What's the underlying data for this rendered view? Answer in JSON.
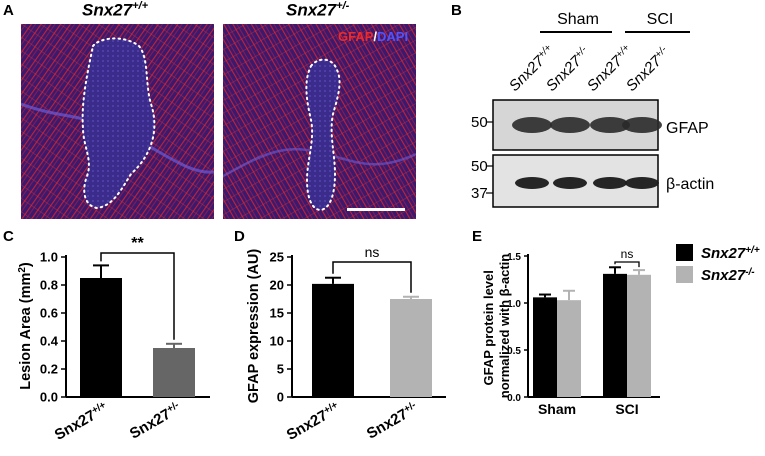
{
  "panels": {
    "A": "A",
    "B": "B",
    "C": "C",
    "D": "D",
    "E": "E"
  },
  "panel_a": {
    "images": [
      {
        "genotype_base": "Snx27",
        "genotype_sup": "+/+"
      },
      {
        "genotype_base": "Snx27",
        "genotype_sup": "+/-"
      }
    ],
    "stain_gfap": "GFAP",
    "stain_sep": "/",
    "stain_dapi": "DAPI",
    "colors": {
      "gfap": "#d8202a",
      "dapi": "#3b3cc8",
      "background": "#2a1760"
    }
  },
  "panel_b": {
    "groups": [
      {
        "label": "Sham"
      },
      {
        "label": "SCI"
      }
    ],
    "lanes": [
      {
        "base": "Snx27",
        "sup": "+/+"
      },
      {
        "base": "Snx27",
        "sup": "+/-"
      },
      {
        "base": "Snx27",
        "sup": "+/+"
      },
      {
        "base": "Snx27",
        "sup": "+/-"
      }
    ],
    "blots": [
      {
        "protein": "GFAP",
        "markers": [
          "50"
        ]
      },
      {
        "protein": "β-actin",
        "markers": [
          "50",
          "37"
        ]
      }
    ]
  },
  "chart_data": [
    {
      "panel": "C",
      "type": "bar",
      "categories": [
        {
          "base": "Snx27",
          "sup": "+/+"
        },
        {
          "base": "Snx27",
          "sup": "+/-"
        }
      ],
      "values": [
        0.85,
        0.35
      ],
      "errors": [
        0.09,
        0.03
      ],
      "colors": [
        "#000000",
        "#666666"
      ],
      "ylabel": "Lesion Area (mm",
      "ylabel_sup": "2",
      "ylabel_close": ")",
      "ylim": [
        0,
        1.0
      ],
      "yticks": [
        "0.0",
        "0.2",
        "0.4",
        "0.6",
        "0.8",
        "1.0"
      ],
      "significance": "**"
    },
    {
      "panel": "D",
      "type": "bar",
      "categories": [
        {
          "base": "Snx27",
          "sup": "+/+"
        },
        {
          "base": "Snx27",
          "sup": "+/-"
        }
      ],
      "values": [
        20.2,
        17.5
      ],
      "errors": [
        1.1,
        0.4
      ],
      "colors": [
        "#000000",
        "#b3b3b3"
      ],
      "ylabel": "GFAP expression (AU)",
      "ylim": [
        0,
        25
      ],
      "yticks": [
        "0",
        "5",
        "10",
        "15",
        "20",
        "25"
      ],
      "significance": "ns"
    },
    {
      "panel": "E",
      "type": "bar",
      "categories": [
        "Sham",
        "SCI"
      ],
      "series": [
        {
          "name_base": "Snx27",
          "name_sup": "+/+",
          "values": [
            1.06,
            1.31
          ],
          "errors": [
            0.03,
            0.07
          ],
          "color": "#000000"
        },
        {
          "name_base": "Snx27",
          "name_sup": "-/-",
          "values": [
            1.03,
            1.3
          ],
          "errors": [
            0.1,
            0.05
          ],
          "color": "#b3b3b3"
        }
      ],
      "ylabel_lines": [
        "GFAP protein level",
        "normalized with β-actin"
      ],
      "ylim": [
        0,
        1.5
      ],
      "yticks": [
        "0.0",
        "0.5",
        "1.0",
        "1.5"
      ],
      "significance": "ns",
      "legend": "top-right"
    }
  ]
}
